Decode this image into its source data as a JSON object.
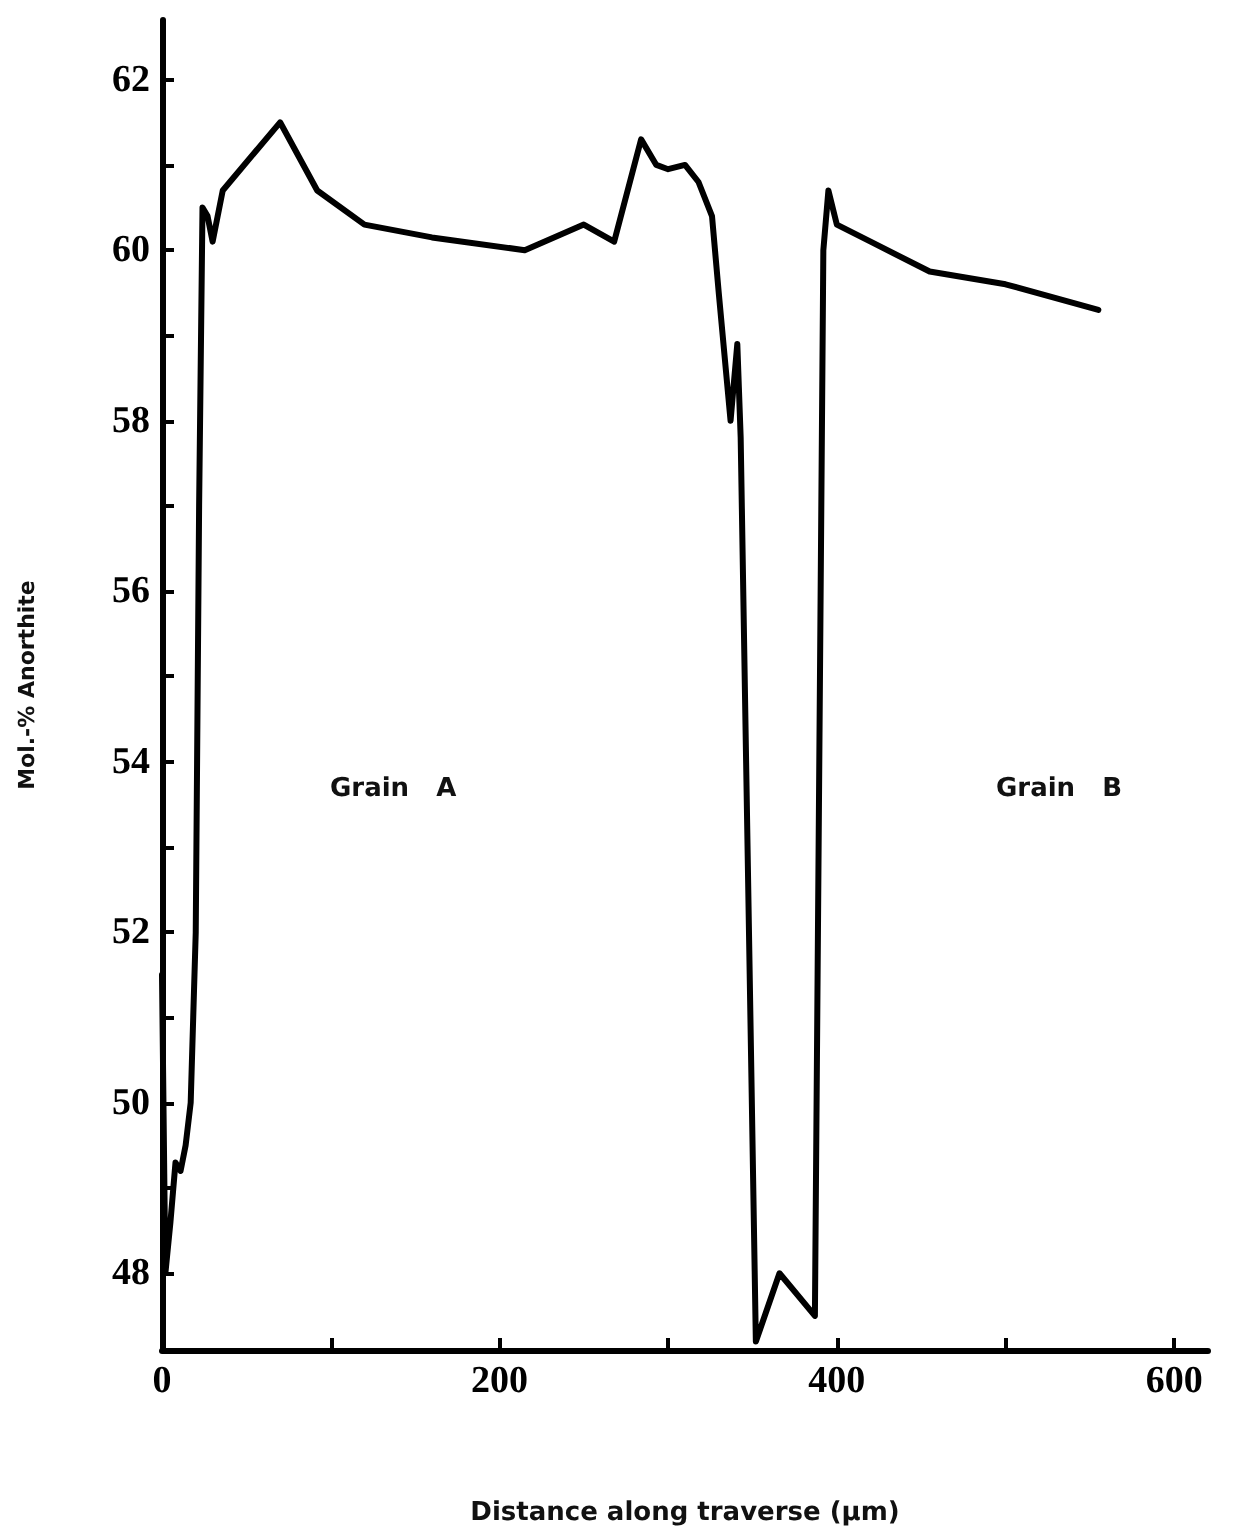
{
  "chart_data": {
    "type": "line",
    "xlabel": "Distance along traverse (µm)",
    "ylabel": "Mol.-% Anorthite",
    "x": [
      0,
      2,
      5,
      8,
      11,
      14,
      17,
      20,
      22,
      24,
      27,
      30,
      36,
      70,
      92,
      120,
      160,
      215,
      250,
      268,
      284,
      293,
      300,
      310,
      318,
      326,
      330,
      337,
      341,
      343,
      352,
      366,
      387,
      392,
      395,
      400,
      420,
      455,
      500,
      555
    ],
    "series": [
      {
        "color": "#000000",
        "values": [
          51.5,
          48.0,
          48.6,
          49.3,
          49.2,
          49.5,
          50.0,
          52.0,
          57.0,
          60.5,
          60.4,
          60.1,
          60.7,
          61.5,
          60.7,
          60.3,
          60.15,
          60.0,
          60.3,
          60.1,
          61.3,
          61.0,
          60.95,
          61.0,
          60.8,
          60.4,
          59.5,
          58.0,
          58.9,
          57.8,
          47.2,
          48.0,
          47.5,
          60.0,
          60.7,
          60.3,
          60.1,
          59.75,
          59.6,
          59.3
        ]
      }
    ],
    "xlim": [
      0,
      620
    ],
    "ylim": [
      47.1,
      62.7
    ],
    "xticks": [
      0,
      {
        "value": 100,
        "label": null
      },
      200,
      {
        "value": 300,
        "label": null
      },
      400,
      {
        "value": 500,
        "label": null
      },
      600
    ],
    "yticks": [
      48,
      {
        "value": 49,
        "label": null
      },
      50,
      {
        "value": 51,
        "label": null
      },
      52,
      {
        "value": 53,
        "label": null
      },
      54,
      {
        "value": 55,
        "label": null
      },
      56,
      {
        "value": 57,
        "label": null
      },
      58,
      {
        "value": 59,
        "label": null
      },
      60,
      {
        "value": 61,
        "label": null
      },
      62
    ],
    "annotations": [
      "Grain A",
      "Grain B"
    ],
    "grid": false,
    "marker": "none",
    "line_style": "solid"
  }
}
